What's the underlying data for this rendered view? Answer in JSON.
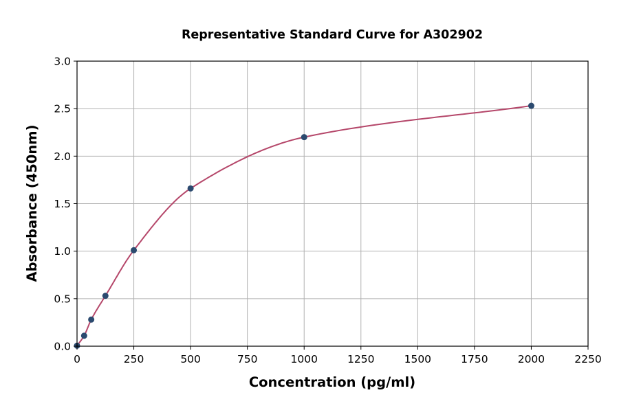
{
  "chart_data": {
    "type": "scatter",
    "title": "Representative Standard Curve for A302902",
    "xlabel": "Concentration (pg/ml)",
    "ylabel": "Absorbance (450nm)",
    "xlim": [
      0,
      2250
    ],
    "ylim": [
      0,
      3.0
    ],
    "xticks": [
      "0",
      "250",
      "500",
      "750",
      "1000",
      "1250",
      "1500",
      "1750",
      "2000",
      "2250"
    ],
    "yticks": [
      "0.0",
      "0.5",
      "1.0",
      "1.5",
      "2.0",
      "2.5",
      "3.0"
    ],
    "grid": true,
    "legend": "none",
    "series": [
      {
        "x": [
          0,
          31.25,
          62.5,
          125,
          250,
          500,
          1000,
          2000
        ],
        "y": [
          0.005,
          0.11,
          0.28,
          0.53,
          1.01,
          1.66,
          2.2,
          2.53
        ],
        "fit_curve": true
      }
    ],
    "colors": {
      "points": "#2b4a6f",
      "curve": "#b5476a",
      "grid": "#b0b0b0"
    }
  }
}
